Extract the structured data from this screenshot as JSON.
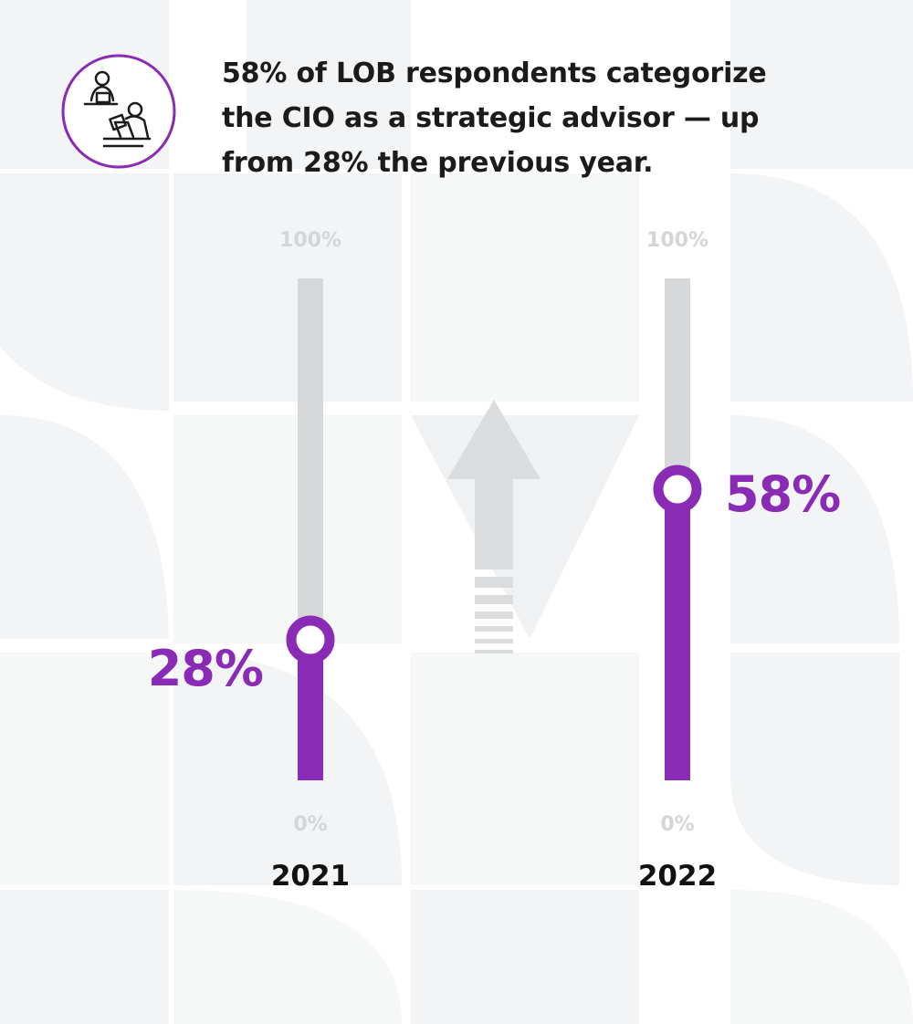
{
  "headline": {
    "lines": [
      "58% of LOB respondents categorize",
      "the CIO as a strategic advisor — up",
      "from 28% the previous year."
    ]
  },
  "icon": {
    "name": "people-at-desk-icon"
  },
  "colors": {
    "accent": "#8a2bb5",
    "track": "#d6d8da",
    "tick_text": "#d3d5d7",
    "text": "#111111",
    "background_pattern": "#f2f3f4"
  },
  "chart_data": {
    "type": "bar",
    "orientation": "vertical-gauge",
    "categories": [
      "2021",
      "2022"
    ],
    "values": [
      28,
      58
    ],
    "value_labels": [
      "28%",
      "58%"
    ],
    "ylim": [
      0,
      100
    ],
    "tick_labels": {
      "top": "100%",
      "bottom": "0%"
    },
    "annotation": "up-arrow indicating increase",
    "grid": false,
    "legend": "none"
  }
}
